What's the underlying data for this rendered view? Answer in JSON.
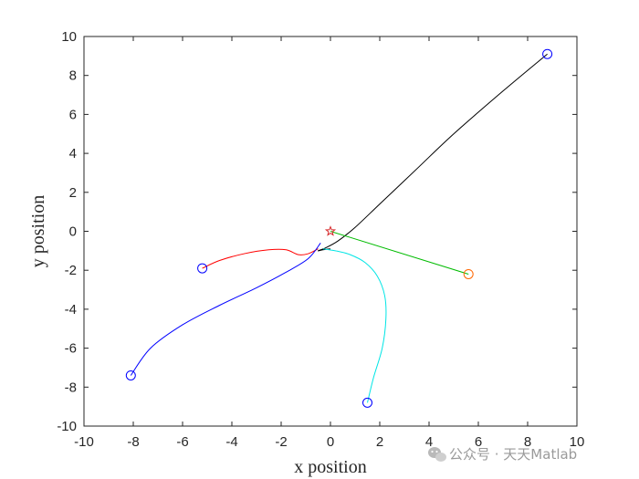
{
  "chart_data": {
    "type": "line",
    "title": "",
    "xlabel": "x position",
    "ylabel": "y position",
    "xlim": [
      -10,
      10
    ],
    "ylim": [
      -10,
      10
    ],
    "xticks": [
      -10,
      -8,
      -6,
      -4,
      -2,
      0,
      2,
      4,
      6,
      8,
      10
    ],
    "yticks": [
      -10,
      -8,
      -6,
      -4,
      -2,
      0,
      2,
      4,
      6,
      8,
      10
    ],
    "grid": false,
    "legend": "none",
    "target": {
      "x": 0,
      "y": 0,
      "marker": "pentagram",
      "color": "#d62728"
    },
    "series": [
      {
        "color": "#000000",
        "start_marker_color": "#0000ff",
        "x": [
          8.8,
          7.0,
          5.0,
          3.5,
          2.0,
          1.0,
          0.3,
          -0.2,
          -0.5,
          -0.3,
          0.0
        ],
        "y": [
          9.1,
          7.2,
          5.0,
          3.2,
          1.4,
          0.2,
          -0.5,
          -0.85,
          -1.0,
          -0.95,
          -0.9
        ]
      },
      {
        "color": "#ff0000",
        "start_marker_color": "#0000ff",
        "x": [
          -5.2,
          -4.5,
          -3.5,
          -2.5,
          -1.8,
          -1.3,
          -0.9,
          -0.5
        ],
        "y": [
          -1.9,
          -1.5,
          -1.15,
          -0.95,
          -0.95,
          -1.2,
          -1.15,
          -0.9
        ]
      },
      {
        "color": "#0000ff",
        "start_marker_color": "#0000ff",
        "x": [
          -8.1,
          -7.3,
          -6.0,
          -4.5,
          -3.0,
          -1.8,
          -0.9,
          -0.4
        ],
        "y": [
          -7.4,
          -6.0,
          -4.8,
          -3.8,
          -2.9,
          -2.1,
          -1.4,
          -0.6
        ]
      },
      {
        "color": "#00e5e5",
        "start_marker_color": "#0000ff",
        "x": [
          1.5,
          1.75,
          2.1,
          2.25,
          2.2,
          1.9,
          1.4,
          0.8,
          0.2,
          -0.3
        ],
        "y": [
          -8.8,
          -7.5,
          -6.0,
          -4.5,
          -3.3,
          -2.3,
          -1.6,
          -1.2,
          -1.0,
          -0.9
        ]
      },
      {
        "color": "#00bb00",
        "start_marker_color": "#ff6600",
        "x": [
          5.6,
          0.0
        ],
        "y": [
          -2.2,
          0.0
        ]
      }
    ]
  },
  "watermark": {
    "text": "公众号 · 天天Matlab",
    "icon": "wechat-icon"
  }
}
